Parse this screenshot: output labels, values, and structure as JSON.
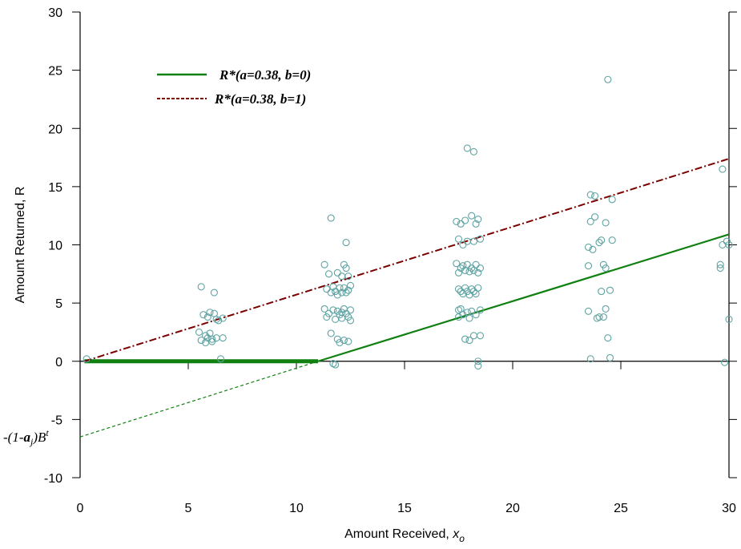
{
  "chart_data": {
    "type": "scatter",
    "xlabel": "Amount Received, ",
    "xlabel_sub": "o",
    "xlabel_var": "x",
    "ylabel": "Amount Returned, R",
    "xlim": [
      0,
      30
    ],
    "ylim": [
      -10,
      30
    ],
    "x_ticks": [
      0,
      5,
      10,
      15,
      20,
      25,
      30
    ],
    "y_ticks": [
      -10,
      -5,
      0,
      5,
      10,
      15,
      20,
      25,
      30
    ],
    "grid": false,
    "legend_position": "top-left",
    "colors": {
      "points": "#5fa3a3",
      "solid_line": "#108010",
      "dashed_line": "#7a0000",
      "axis": "#000000"
    },
    "annotation": {
      "prefix": "-(1-",
      "bold_a": "a",
      "sub_j": "j",
      "mid": ")B",
      "sup_t": "t",
      "y": -6.5
    },
    "series": [
      {
        "name": "R*(a=0.38, b=0)",
        "kind": "line",
        "style": "solid",
        "color": "#108010",
        "segments": [
          {
            "x": [
              0.2,
              11.0
            ],
            "y": [
              0,
              0
            ],
            "width": "thick"
          },
          {
            "x": [
              11.0,
              30.0
            ],
            "y": [
              0,
              10.9
            ],
            "width": "normal"
          },
          {
            "x": [
              0,
              11.0
            ],
            "y": [
              -6.5,
              0
            ],
            "width": "thin-dashed"
          }
        ]
      },
      {
        "name": "R*(a=0.38, b=1)",
        "kind": "line",
        "style": "dash-dot",
        "color": "#7a0000",
        "segments": [
          {
            "x": [
              0.2,
              30.0
            ],
            "y": [
              0,
              17.4
            ]
          }
        ]
      },
      {
        "name": "observations",
        "kind": "scatter",
        "points": [
          [
            0.3,
            0.2
          ],
          [
            5.5,
            2.5
          ],
          [
            5.6,
            1.8
          ],
          [
            5.6,
            6.4
          ],
          [
            5.7,
            4.0
          ],
          [
            5.8,
            1.6
          ],
          [
            5.8,
            2.2
          ],
          [
            5.9,
            3.8
          ],
          [
            5.9,
            2.0
          ],
          [
            6.0,
            4.2
          ],
          [
            6.0,
            2.4
          ],
          [
            6.1,
            1.9
          ],
          [
            6.1,
            1.7
          ],
          [
            6.2,
            4.1
          ],
          [
            6.2,
            5.9
          ],
          [
            6.3,
            3.6
          ],
          [
            6.3,
            2.0
          ],
          [
            6.4,
            3.5
          ],
          [
            6.5,
            0.2
          ],
          [
            6.6,
            3.7
          ],
          [
            6.6,
            2.0
          ],
          [
            11.3,
            8.3
          ],
          [
            11.3,
            4.5
          ],
          [
            11.4,
            6.2
          ],
          [
            11.4,
            3.8
          ],
          [
            11.5,
            7.5
          ],
          [
            11.5,
            4.1
          ],
          [
            11.6,
            12.3
          ],
          [
            11.6,
            5.9
          ],
          [
            11.6,
            2.4
          ],
          [
            11.7,
            6.4
          ],
          [
            11.7,
            4.4
          ],
          [
            11.7,
            -0.2
          ],
          [
            11.8,
            6.0
          ],
          [
            11.8,
            3.6
          ],
          [
            11.8,
            -0.3
          ],
          [
            11.9,
            7.6
          ],
          [
            11.9,
            5.7
          ],
          [
            11.9,
            4.3
          ],
          [
            11.9,
            1.9
          ],
          [
            12.0,
            6.3
          ],
          [
            12.0,
            4.0
          ],
          [
            12.0,
            1.6
          ],
          [
            12.1,
            7.3
          ],
          [
            12.1,
            5.9
          ],
          [
            12.1,
            4.2
          ],
          [
            12.1,
            3.7
          ],
          [
            12.2,
            8.3
          ],
          [
            12.2,
            6.3
          ],
          [
            12.2,
            4.5
          ],
          [
            12.2,
            1.8
          ],
          [
            12.3,
            10.2
          ],
          [
            12.3,
            8.0
          ],
          [
            12.3,
            5.9
          ],
          [
            12.3,
            4.1
          ],
          [
            12.4,
            7.3
          ],
          [
            12.4,
            6.1
          ],
          [
            12.4,
            3.8
          ],
          [
            12.4,
            1.7
          ],
          [
            12.5,
            6.5
          ],
          [
            12.5,
            4.4
          ],
          [
            12.5,
            3.5
          ],
          [
            17.4,
            12.0
          ],
          [
            17.4,
            8.4
          ],
          [
            17.5,
            10.5
          ],
          [
            17.5,
            7.6
          ],
          [
            17.5,
            6.2
          ],
          [
            17.5,
            4.4
          ],
          [
            17.5,
            3.8
          ],
          [
            17.6,
            11.8
          ],
          [
            17.6,
            8.0
          ],
          [
            17.6,
            6.0
          ],
          [
            17.6,
            4.5
          ],
          [
            17.7,
            10.0
          ],
          [
            17.7,
            8.2
          ],
          [
            17.7,
            5.8
          ],
          [
            17.7,
            4.0
          ],
          [
            17.8,
            12.1
          ],
          [
            17.8,
            7.8
          ],
          [
            17.8,
            6.3
          ],
          [
            17.8,
            1.9
          ],
          [
            17.9,
            18.3
          ],
          [
            17.9,
            10.3
          ],
          [
            17.9,
            8.3
          ],
          [
            17.9,
            6.0
          ],
          [
            17.9,
            4.2
          ],
          [
            18.0,
            7.7
          ],
          [
            18.0,
            5.7
          ],
          [
            18.0,
            3.7
          ],
          [
            18.0,
            1.8
          ],
          [
            18.1,
            12.5
          ],
          [
            18.1,
            8.0
          ],
          [
            18.1,
            6.2
          ],
          [
            18.1,
            4.3
          ],
          [
            18.2,
            18.0
          ],
          [
            18.2,
            10.3
          ],
          [
            18.2,
            7.8
          ],
          [
            18.2,
            6.0
          ],
          [
            18.2,
            2.2
          ],
          [
            18.3,
            11.8
          ],
          [
            18.3,
            8.3
          ],
          [
            18.3,
            5.8
          ],
          [
            18.3,
            4.0
          ],
          [
            18.4,
            12.2
          ],
          [
            18.4,
            7.6
          ],
          [
            18.4,
            6.3
          ],
          [
            18.4,
            0.0
          ],
          [
            18.4,
            -0.4
          ],
          [
            18.5,
            10.5
          ],
          [
            18.5,
            8.0
          ],
          [
            18.5,
            4.4
          ],
          [
            18.5,
            2.2
          ],
          [
            23.5,
            9.8
          ],
          [
            23.5,
            8.2
          ],
          [
            23.5,
            4.3
          ],
          [
            23.6,
            14.3
          ],
          [
            23.6,
            12.0
          ],
          [
            23.6,
            0.2
          ],
          [
            23.7,
            9.6
          ],
          [
            23.8,
            12.4
          ],
          [
            23.8,
            14.2
          ],
          [
            23.9,
            3.7
          ],
          [
            24.0,
            10.2
          ],
          [
            24.0,
            3.8
          ],
          [
            24.1,
            6.0
          ],
          [
            24.1,
            10.4
          ],
          [
            24.2,
            8.3
          ],
          [
            24.2,
            3.8
          ],
          [
            24.3,
            11.9
          ],
          [
            24.3,
            8.0
          ],
          [
            24.3,
            4.5
          ],
          [
            24.4,
            24.2
          ],
          [
            24.4,
            2.0
          ],
          [
            24.5,
            0.3
          ],
          [
            24.5,
            6.1
          ],
          [
            24.6,
            13.9
          ],
          [
            24.6,
            10.4
          ],
          [
            29.6,
            8.3
          ],
          [
            29.6,
            8.0
          ],
          [
            29.7,
            16.5
          ],
          [
            29.7,
            10.0
          ],
          [
            29.8,
            -0.1
          ],
          [
            29.9,
            10.3
          ],
          [
            30.0,
            10.0
          ],
          [
            30.0,
            3.6
          ]
        ]
      }
    ]
  }
}
